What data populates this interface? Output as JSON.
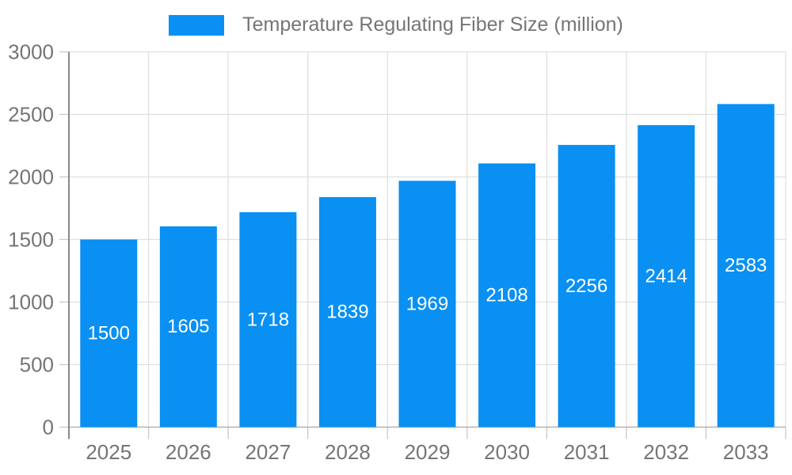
{
  "legend": {
    "label": "Temperature Regulating Fiber Size (million)"
  },
  "colors": {
    "bar": "#0990f2",
    "axis_label": "#757575",
    "legend_label": "#757575",
    "grid_line": "#e0e0e0",
    "y_axis_line": "#898989",
    "x_axis_line": "#b3b3b3",
    "tick_mark": "#c9c9c9",
    "value_label": "#ffffff",
    "background": "#ffffff"
  },
  "chart_data": {
    "type": "bar",
    "title": "Temperature Regulating Fiber Size (million)",
    "categories": [
      "2025",
      "2026",
      "2027",
      "2028",
      "2029",
      "2030",
      "2031",
      "2032",
      "2033"
    ],
    "series": [
      {
        "name": "Temperature Regulating Fiber Size (million)",
        "values": [
          1500,
          1605,
          1718,
          1839,
          1969,
          2108,
          2256,
          2414,
          2583
        ]
      }
    ],
    "xlabel": "",
    "ylabel": "",
    "ylim": [
      0,
      3000
    ],
    "yticks": [
      0,
      500,
      1000,
      1500,
      2000,
      2500,
      3000
    ],
    "grid": true,
    "legend_position": "top-center",
    "value_label_position": "inside-center"
  }
}
